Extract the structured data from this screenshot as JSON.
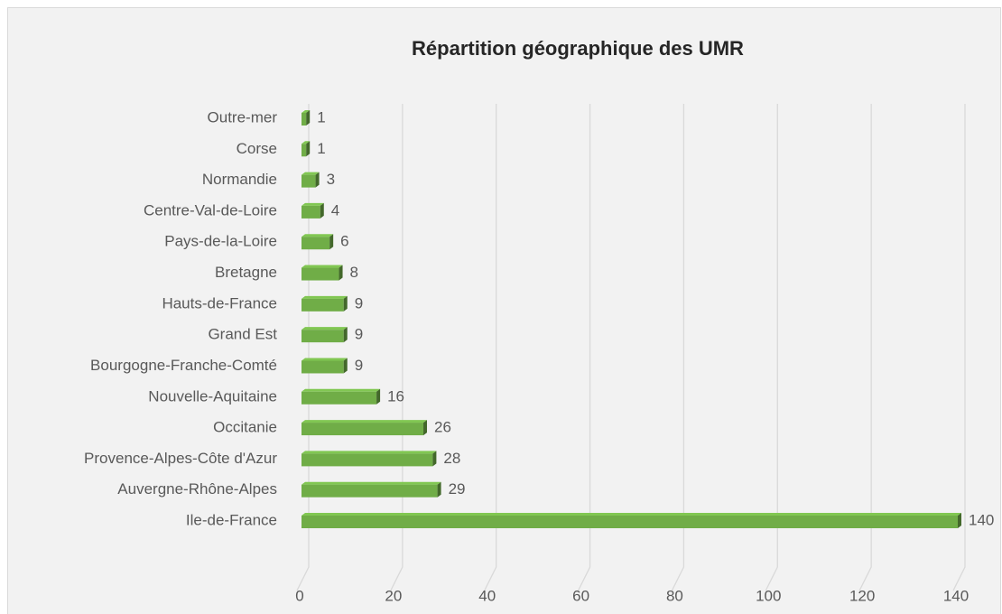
{
  "chart_data": {
    "type": "bar",
    "orientation": "horizontal",
    "title": "Répartition géographique des UMR",
    "categories": [
      "Outre-mer",
      "Corse",
      "Normandie",
      "Centre-Val-de-Loire",
      "Pays-de-la-Loire",
      "Bretagne",
      "Hauts-de-France",
      "Grand Est",
      "Bourgogne-Franche-Comté",
      "Nouvelle-Aquitaine",
      "Occitanie",
      "Provence-Alpes-Côte d'Azur",
      "Auvergne-Rhône-Alpes",
      "Ile-de-France"
    ],
    "values": [
      1,
      1,
      3,
      4,
      6,
      8,
      9,
      9,
      9,
      16,
      26,
      28,
      29,
      140
    ],
    "color": "#70ad47",
    "xlim": [
      0,
      140
    ],
    "xticks": [
      0,
      20,
      40,
      60,
      80,
      100,
      120,
      140
    ],
    "grid": true
  }
}
